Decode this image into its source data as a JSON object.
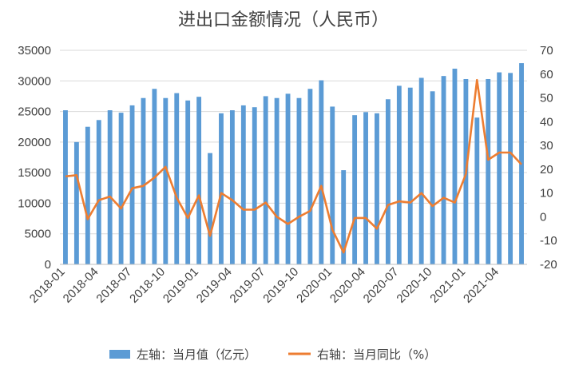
{
  "chart_data": {
    "type": "bar",
    "title": "进出口金额情况（人民币）",
    "x": [
      "2018-01",
      "2018-02",
      "2018-03",
      "2018-04",
      "2018-05",
      "2018-06",
      "2018-07",
      "2018-08",
      "2018-09",
      "2018-10",
      "2018-11",
      "2018-12",
      "2019-01",
      "2019-02",
      "2019-03",
      "2019-04",
      "2019-05",
      "2019-06",
      "2019-07",
      "2019-08",
      "2019-09",
      "2019-10",
      "2019-11",
      "2019-12",
      "2020-01",
      "2020-02",
      "2020-03",
      "2020-04",
      "2020-05",
      "2020-06",
      "2020-07",
      "2020-08",
      "2020-09",
      "2020-10",
      "2020-11",
      "2020-12",
      "2021-01",
      "2021-02",
      "2021-03",
      "2021-04",
      "2021-05",
      "2021-06"
    ],
    "x_tick_labels": [
      "2018-01",
      "2018-04",
      "2018-07",
      "2018-10",
      "2019-01",
      "2019-04",
      "2019-07",
      "2019-10",
      "2020-01",
      "2020-04",
      "2020-07",
      "2020-10",
      "2021-01",
      "2021-04"
    ],
    "series": [
      {
        "name": "左轴：当月值（亿元）",
        "type": "bar",
        "axis": "left",
        "color": "#5B9BD5",
        "values": [
          25200,
          20000,
          22500,
          23600,
          25200,
          24800,
          26000,
          27200,
          28700,
          27200,
          28000,
          26800,
          27400,
          18200,
          24700,
          25200,
          26000,
          25700,
          27500,
          27200,
          27900,
          27200,
          28700,
          30100,
          25800,
          15400,
          24400,
          24900,
          24700,
          27000,
          29200,
          28900,
          30500,
          28300,
          30800,
          32000,
          30300,
          24000,
          30300,
          31400,
          31300,
          32900
        ]
      },
      {
        "name": "右轴：当月同比（%）",
        "type": "line",
        "axis": "right",
        "color": "#ED7D31",
        "values": [
          17,
          17.5,
          -1,
          7,
          8.5,
          3.5,
          12,
          13,
          16.5,
          21,
          8,
          -0.5,
          9,
          -8,
          10,
          7,
          3,
          3,
          6,
          0,
          -3,
          0,
          2.5,
          13,
          -5.5,
          -15,
          -0.5,
          -0.5,
          -5,
          5,
          6.5,
          6,
          10,
          4.5,
          8,
          6,
          18,
          57.5,
          24,
          27,
          27,
          22
        ]
      }
    ],
    "y_left": {
      "min": 0,
      "max": 35000,
      "step": 5000
    },
    "y_right": {
      "min": -20,
      "max": 70,
      "step": 10
    },
    "grid": true,
    "legend_position": "bottom"
  }
}
